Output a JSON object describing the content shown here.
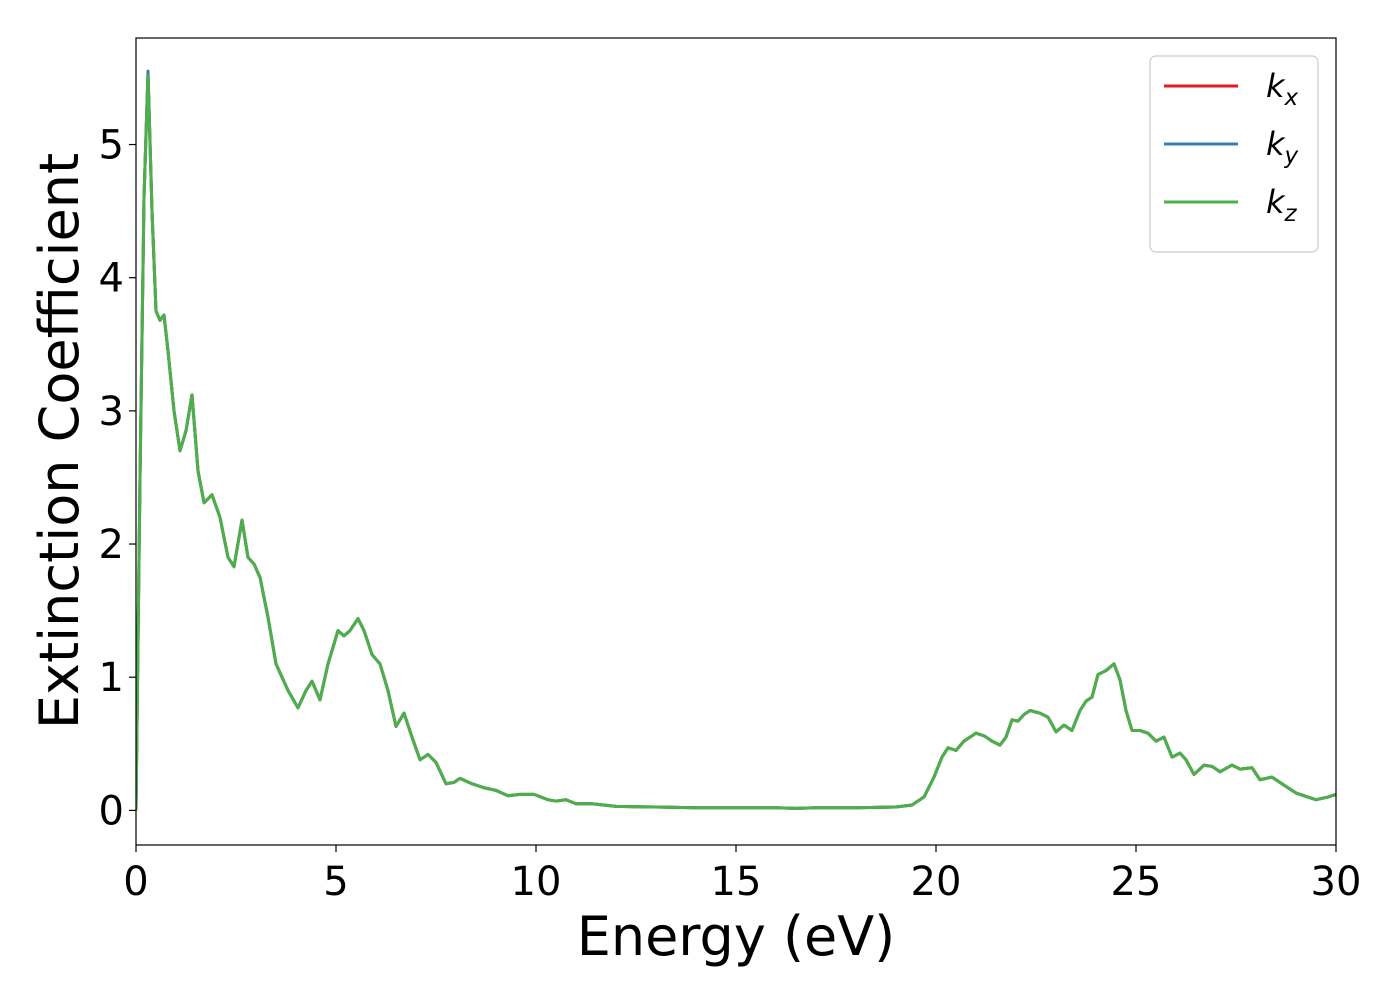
{
  "chart_data": {
    "type": "line",
    "xlabel": "Energy (eV)",
    "ylabel": "Extinction Coefficient",
    "xlim": [
      0,
      30
    ],
    "ylim": [
      -0.26,
      5.8
    ],
    "xticks": [
      0,
      5,
      10,
      15,
      20,
      25,
      30
    ],
    "yticks": [
      0,
      1,
      2,
      3,
      4,
      5
    ],
    "legend": "upper right",
    "grid": false,
    "x": [
      0,
      0.1,
      0.2,
      0.3,
      0.4,
      0.5,
      0.6,
      0.7,
      0.8,
      0.95,
      1.1,
      1.25,
      1.4,
      1.55,
      1.7,
      1.9,
      2.1,
      2.3,
      2.45,
      2.65,
      2.8,
      2.95,
      3.1,
      3.3,
      3.5,
      3.8,
      4.05,
      4.25,
      4.4,
      4.6,
      4.8,
      5.05,
      5.2,
      5.35,
      5.55,
      5.7,
      5.9,
      6.1,
      6.3,
      6.5,
      6.7,
      6.9,
      7.1,
      7.3,
      7.5,
      7.75,
      7.95,
      8.1,
      8.4,
      8.7,
      9.0,
      9.3,
      9.6,
      9.95,
      10.3,
      10.5,
      10.75,
      11.0,
      11.4,
      12,
      13,
      14,
      15,
      16,
      16.5,
      17,
      18,
      19,
      19.4,
      19.7,
      19.95,
      20.15,
      20.3,
      20.5,
      20.7,
      21.0,
      21.2,
      21.4,
      21.6,
      21.75,
      21.9,
      22.05,
      22.2,
      22.35,
      22.6,
      22.8,
      23.0,
      23.2,
      23.4,
      23.6,
      23.75,
      23.9,
      24.05,
      24.25,
      24.45,
      24.6,
      24.75,
      24.9,
      25.1,
      25.3,
      25.5,
      25.7,
      25.9,
      26.1,
      26.25,
      26.45,
      26.7,
      26.9,
      27.1,
      27.4,
      27.6,
      27.9,
      28.1,
      28.4,
      28.7,
      29.0,
      29.3,
      29.5,
      29.8,
      30
    ],
    "series": [
      {
        "name": "kx",
        "color": "#e41a1c",
        "values": [
          0,
          2.5,
          4.6,
          5.55,
          4.5,
          3.75,
          3.68,
          3.72,
          3.45,
          3.0,
          2.7,
          2.85,
          3.12,
          2.55,
          2.31,
          2.37,
          2.2,
          1.9,
          1.83,
          2.18,
          1.9,
          1.85,
          1.75,
          1.45,
          1.1,
          0.9,
          0.77,
          0.9,
          0.97,
          0.83,
          1.1,
          1.35,
          1.31,
          1.35,
          1.44,
          1.35,
          1.17,
          1.1,
          0.9,
          0.63,
          0.73,
          0.55,
          0.38,
          0.42,
          0.36,
          0.2,
          0.21,
          0.24,
          0.2,
          0.17,
          0.15,
          0.11,
          0.12,
          0.12,
          0.08,
          0.07,
          0.08,
          0.05,
          0.05,
          0.03,
          0.025,
          0.02,
          0.02,
          0.02,
          0.015,
          0.02,
          0.02,
          0.025,
          0.04,
          0.1,
          0.25,
          0.4,
          0.47,
          0.45,
          0.52,
          0.58,
          0.56,
          0.52,
          0.49,
          0.55,
          0.68,
          0.67,
          0.72,
          0.75,
          0.73,
          0.7,
          0.59,
          0.64,
          0.6,
          0.75,
          0.82,
          0.85,
          1.02,
          1.05,
          1.1,
          0.98,
          0.75,
          0.6,
          0.6,
          0.58,
          0.52,
          0.55,
          0.4,
          0.43,
          0.38,
          0.27,
          0.34,
          0.33,
          0.29,
          0.34,
          0.31,
          0.32,
          0.23,
          0.25,
          0.19,
          0.13,
          0.1,
          0.08,
          0.1,
          0.12
        ]
      },
      {
        "name": "ky",
        "color": "#377eb8",
        "values": [
          0,
          2.5,
          4.6,
          5.55,
          4.5,
          3.75,
          3.68,
          3.72,
          3.45,
          3.0,
          2.7,
          2.85,
          3.12,
          2.55,
          2.31,
          2.37,
          2.2,
          1.9,
          1.83,
          2.18,
          1.9,
          1.85,
          1.75,
          1.45,
          1.1,
          0.9,
          0.77,
          0.9,
          0.97,
          0.83,
          1.1,
          1.35,
          1.31,
          1.35,
          1.44,
          1.35,
          1.17,
          1.1,
          0.9,
          0.63,
          0.73,
          0.55,
          0.38,
          0.42,
          0.36,
          0.2,
          0.21,
          0.24,
          0.2,
          0.17,
          0.15,
          0.11,
          0.12,
          0.12,
          0.08,
          0.07,
          0.08,
          0.05,
          0.05,
          0.03,
          0.025,
          0.02,
          0.02,
          0.02,
          0.015,
          0.02,
          0.02,
          0.025,
          0.04,
          0.1,
          0.25,
          0.4,
          0.47,
          0.45,
          0.52,
          0.58,
          0.56,
          0.52,
          0.49,
          0.55,
          0.68,
          0.67,
          0.72,
          0.75,
          0.73,
          0.7,
          0.59,
          0.64,
          0.6,
          0.75,
          0.82,
          0.85,
          1.02,
          1.05,
          1.1,
          0.98,
          0.75,
          0.6,
          0.6,
          0.58,
          0.52,
          0.55,
          0.4,
          0.43,
          0.38,
          0.27,
          0.34,
          0.33,
          0.29,
          0.34,
          0.31,
          0.32,
          0.23,
          0.25,
          0.19,
          0.13,
          0.1,
          0.08,
          0.1,
          0.12
        ]
      },
      {
        "name": "kz",
        "color": "#4daf4a",
        "values": [
          0,
          2.5,
          4.6,
          5.52,
          4.5,
          3.75,
          3.68,
          3.72,
          3.45,
          3.0,
          2.7,
          2.85,
          3.12,
          2.55,
          2.31,
          2.37,
          2.2,
          1.9,
          1.83,
          2.18,
          1.9,
          1.85,
          1.75,
          1.45,
          1.1,
          0.9,
          0.77,
          0.9,
          0.97,
          0.83,
          1.1,
          1.35,
          1.31,
          1.35,
          1.44,
          1.35,
          1.17,
          1.1,
          0.9,
          0.63,
          0.73,
          0.55,
          0.38,
          0.42,
          0.36,
          0.2,
          0.21,
          0.24,
          0.2,
          0.17,
          0.15,
          0.11,
          0.12,
          0.12,
          0.08,
          0.07,
          0.08,
          0.05,
          0.05,
          0.03,
          0.025,
          0.02,
          0.02,
          0.02,
          0.015,
          0.02,
          0.02,
          0.025,
          0.04,
          0.1,
          0.25,
          0.4,
          0.47,
          0.45,
          0.52,
          0.58,
          0.56,
          0.52,
          0.49,
          0.55,
          0.68,
          0.67,
          0.72,
          0.75,
          0.73,
          0.7,
          0.59,
          0.64,
          0.6,
          0.75,
          0.82,
          0.85,
          1.02,
          1.05,
          1.1,
          0.98,
          0.75,
          0.6,
          0.6,
          0.58,
          0.52,
          0.55,
          0.4,
          0.43,
          0.38,
          0.27,
          0.34,
          0.33,
          0.29,
          0.34,
          0.31,
          0.32,
          0.23,
          0.25,
          0.19,
          0.13,
          0.1,
          0.08,
          0.1,
          0.12
        ]
      }
    ]
  }
}
